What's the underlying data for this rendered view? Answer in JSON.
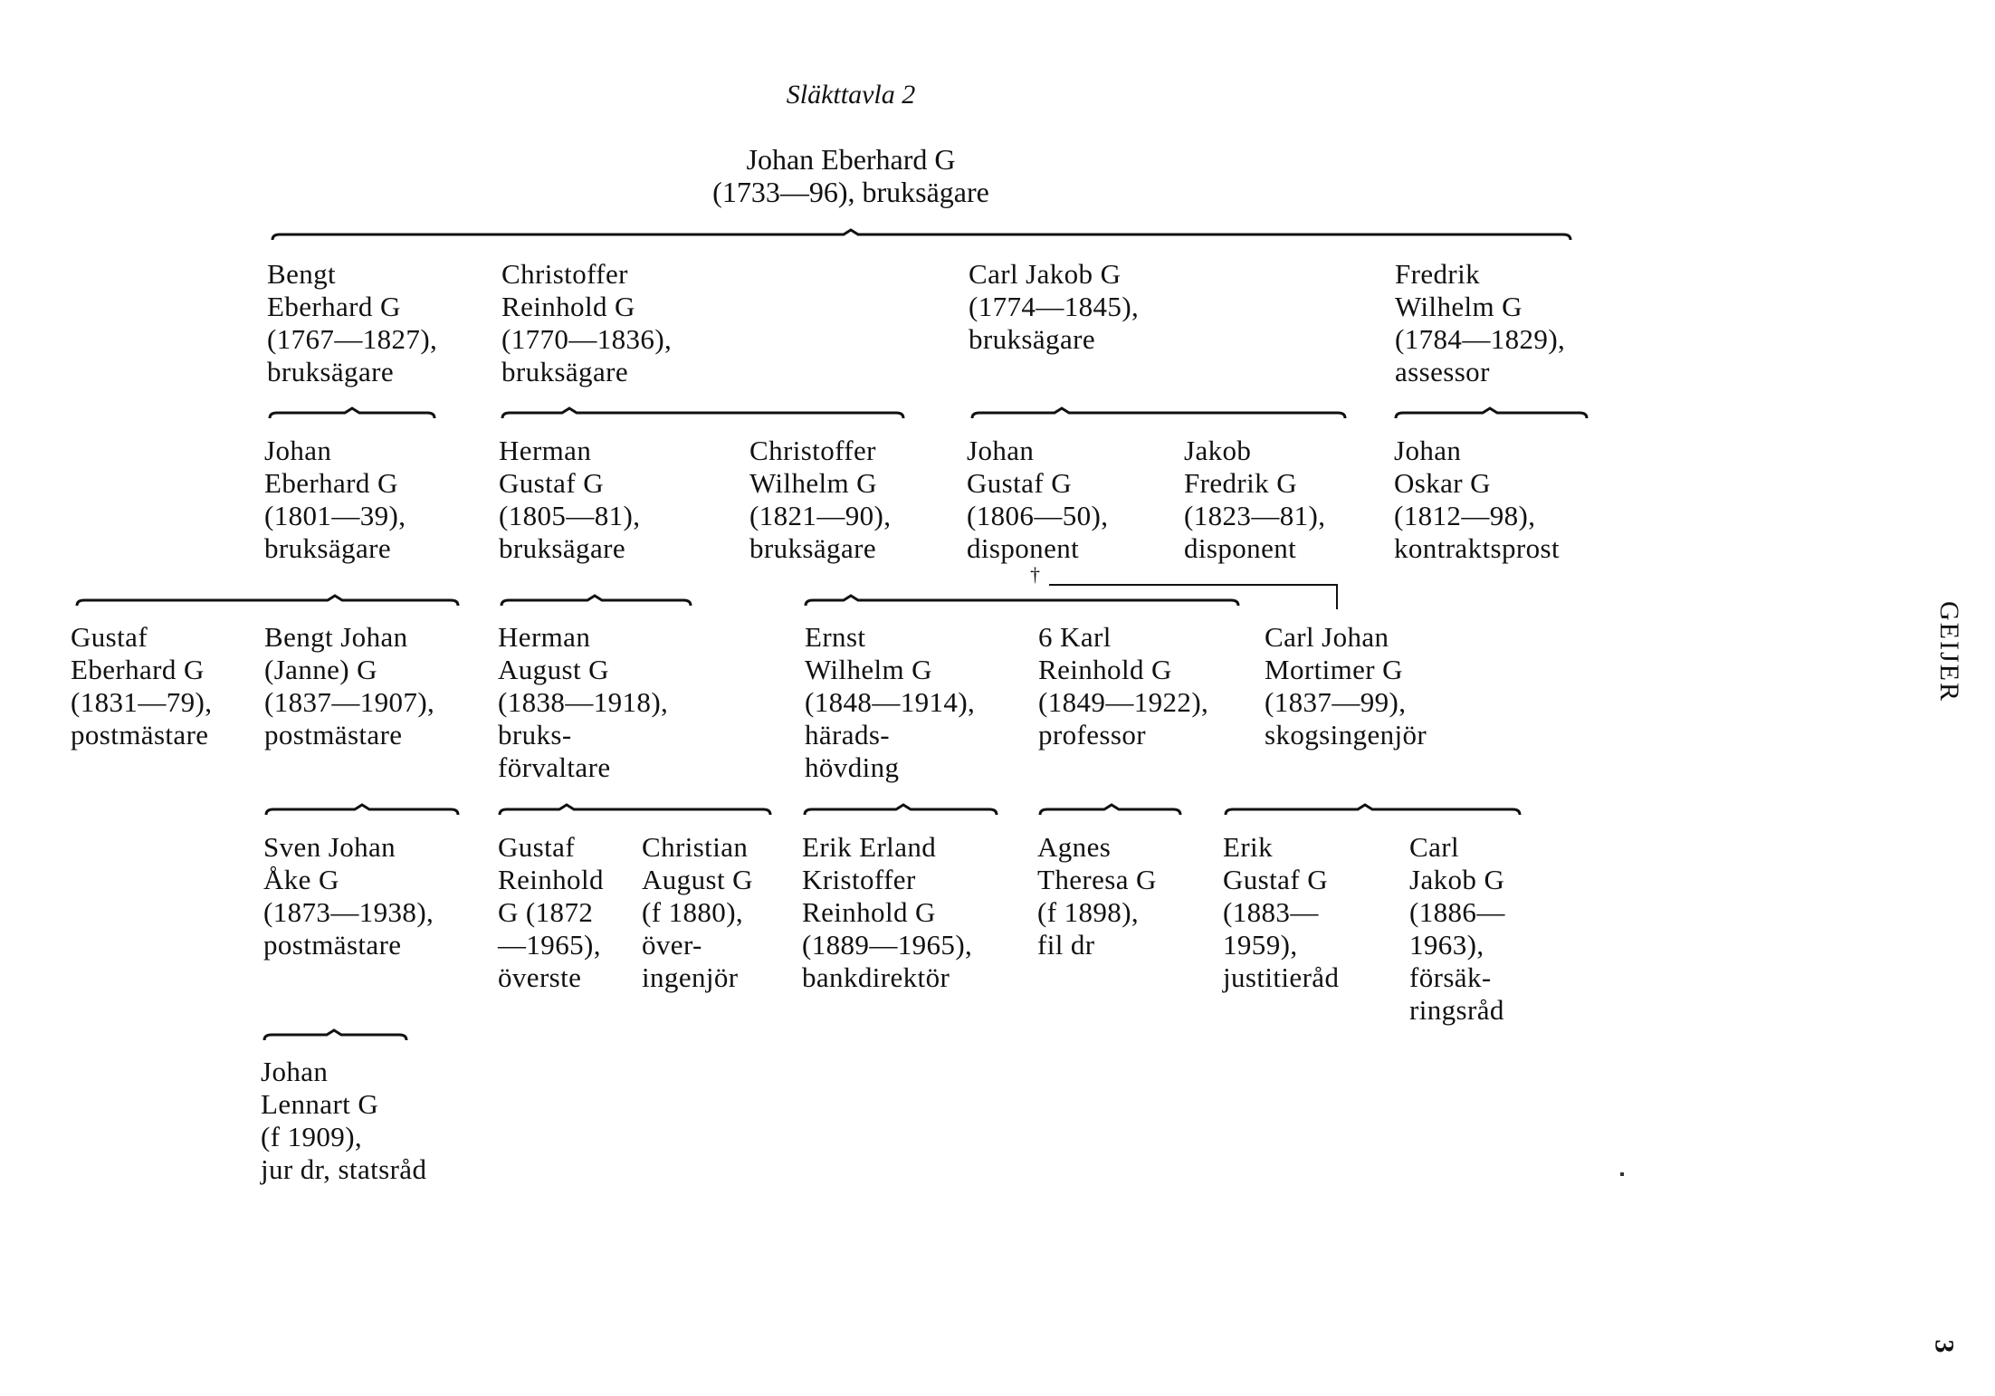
{
  "title": "Släkttavla 2",
  "root": {
    "lines": [
      "Johan Eberhard G",
      "(1733—96), bruksägare"
    ]
  },
  "generations": [
    [
      {
        "lines": [
          "Bengt",
          "Eberhard G",
          "(1767—1827),",
          "bruksägare"
        ]
      },
      {
        "lines": [
          "Christoffer",
          "Reinhold G",
          "(1770—1836),",
          "bruksägare"
        ]
      },
      {
        "lines": [
          "Carl Jakob G",
          "(1774—1845),",
          "bruksägare"
        ]
      },
      {
        "lines": [
          "Fredrik",
          "Wilhelm G",
          "(1784—1829),",
          "assessor"
        ]
      }
    ],
    [
      {
        "lines": [
          "Johan",
          "Eberhard G",
          "(1801—39),",
          "bruksägare"
        ]
      },
      {
        "lines": [
          "Herman",
          "Gustaf G",
          "(1805—81),",
          "bruksägare"
        ]
      },
      {
        "lines": [
          "Christoffer",
          "Wilhelm G",
          "(1821—90),",
          "bruksägare"
        ]
      },
      {
        "lines": [
          "Johan",
          "Gustaf G",
          "(1806—50),",
          "disponent"
        ]
      },
      {
        "lines": [
          "Jakob",
          "Fredrik G",
          "(1823—81),",
          "disponent"
        ]
      },
      {
        "lines": [
          "Johan",
          "Oskar G",
          "(1812—98),",
          "kontraktsprost"
        ]
      }
    ],
    [
      {
        "lines": [
          "Gustaf",
          "Eberhard G",
          "(1831—79),",
          "postmästare"
        ]
      },
      {
        "lines": [
          "Bengt Johan",
          "(Janne) G",
          "(1837—1907),",
          "postmästare"
        ]
      },
      {
        "lines": [
          "Herman",
          "August G",
          "(1838—1918),",
          "bruks-",
          "förvaltare"
        ]
      },
      {
        "lines": [
          "Ernst",
          "Wilhelm G",
          "(1848—1914),",
          "härads-",
          "hövding"
        ]
      },
      {
        "lines": [
          "6 Karl",
          "Reinhold G",
          "(1849—1922),",
          "professor"
        ]
      },
      {
        "lines": [
          "Carl Johan",
          "Mortimer G",
          "(1837—99),",
          "skogsingenjör"
        ]
      }
    ],
    [
      {
        "lines": [
          "Sven Johan",
          "Åke G",
          "(1873—1938),",
          "postmästare"
        ]
      },
      {
        "lines": [
          "Gustaf",
          "Reinhold",
          "G (1872",
          "—1965),",
          "överste"
        ]
      },
      {
        "lines": [
          "Christian",
          "August G",
          "(f 1880),",
          "över-",
          "ingenjör"
        ]
      },
      {
        "lines": [
          "Erik Erland",
          "Kristoffer",
          "Reinhold G",
          "(1889—1965),",
          "bankdirektör"
        ]
      },
      {
        "lines": [
          "Agnes",
          "Theresa G",
          "(f 1898),",
          "fil dr"
        ]
      },
      {
        "lines": [
          "Erik",
          "Gustaf G",
          "(1883—",
          "1959),",
          "justitieråd"
        ]
      },
      {
        "lines": [
          "Carl",
          "Jakob G",
          "(1886—",
          "1963),",
          "försäk-",
          "ringsråd"
        ]
      }
    ],
    [
      {
        "lines": [
          "Johan",
          "Lennart G",
          "(f 1909),",
          "jur dr, statsråd"
        ]
      }
    ]
  ],
  "dagger": "†",
  "side_label": "GEIJER",
  "page_number": "3"
}
